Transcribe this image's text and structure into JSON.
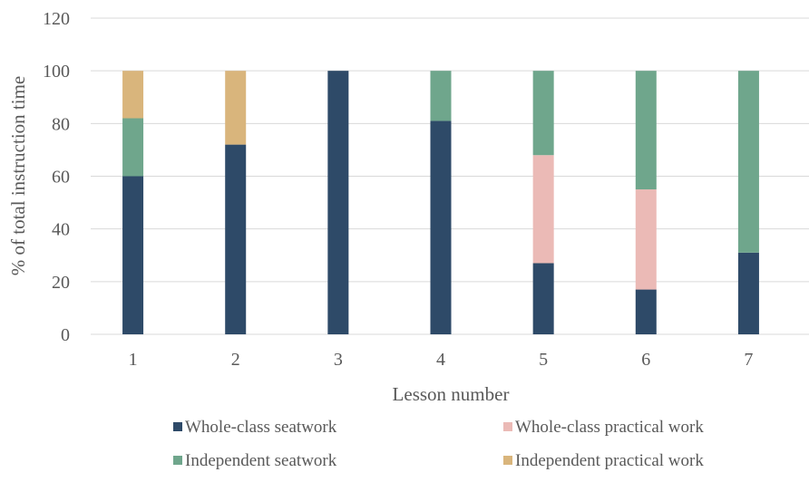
{
  "chart_data": {
    "type": "bar",
    "stacked": true,
    "title": "",
    "xlabel": "Lesson number",
    "ylabel": "% of total instruction time",
    "categories": [
      "1",
      "2",
      "3",
      "4",
      "5",
      "6",
      "7"
    ],
    "ylim": [
      0,
      120
    ],
    "yticks": [
      "0",
      "20",
      "40",
      "60",
      "80",
      "100",
      "120"
    ],
    "grid": true,
    "legend_position": "bottom",
    "series": [
      {
        "name": "Whole-class seatwork",
        "color": "#2e4a68",
        "values": [
          60,
          72,
          100,
          81,
          27,
          17,
          31
        ]
      },
      {
        "name": "Whole-class practical work",
        "color": "#ebbab6",
        "values": [
          0,
          0,
          0,
          0,
          41,
          38,
          0
        ]
      },
      {
        "name": "Independent seatwork",
        "color": "#6fa68c",
        "values": [
          22,
          0,
          0,
          19,
          32,
          45,
          69
        ]
      },
      {
        "name": "Independent practical work",
        "color": "#d9b57c",
        "values": [
          18,
          28,
          0,
          0,
          0,
          0,
          0
        ]
      }
    ]
  }
}
